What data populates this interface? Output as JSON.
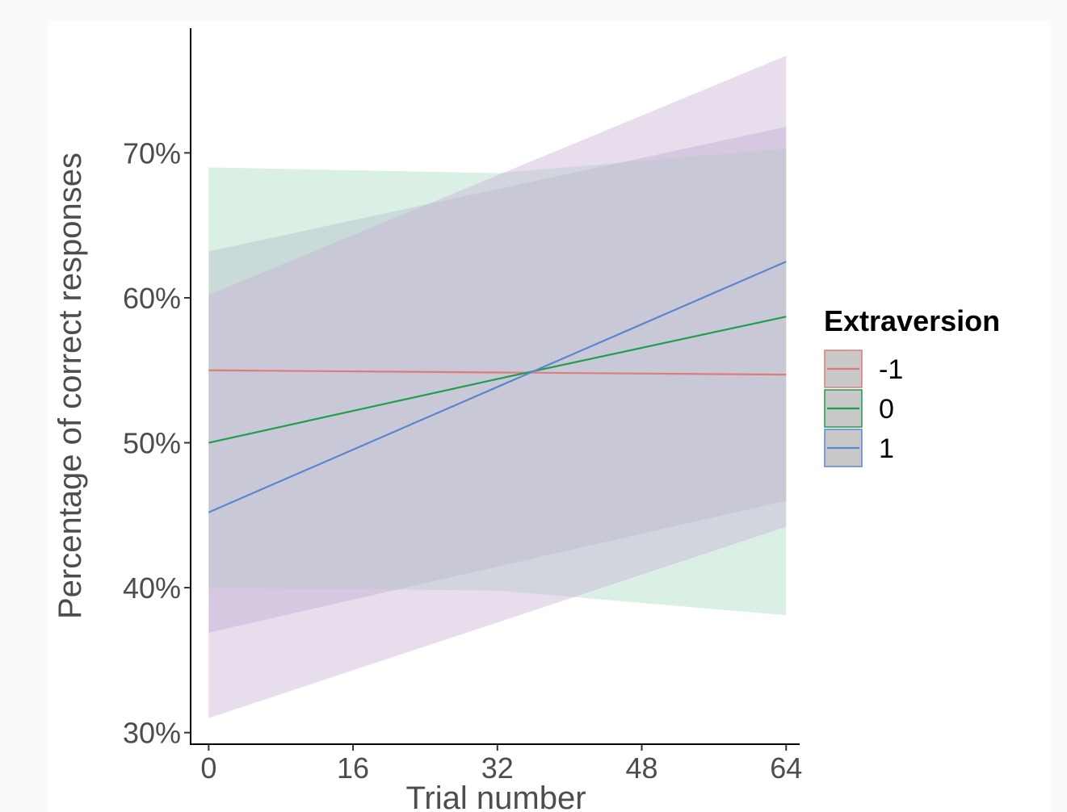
{
  "chart_data": {
    "type": "line",
    "title": "",
    "xlabel": "Trial number",
    "ylabel": "Percentage of correct responses",
    "xlim": [
      -2,
      65.5
    ],
    "ylim": [
      29.2,
      78.6
    ],
    "x_ticks": [
      0,
      16,
      32,
      48,
      64
    ],
    "x_tick_labels": [
      "0",
      "16",
      "32",
      "48",
      "64"
    ],
    "y_ticks": [
      30,
      40,
      50,
      60,
      70
    ],
    "y_tick_labels": [
      "30%",
      "40%",
      "50%",
      "60%",
      "70%"
    ],
    "grid": false,
    "legend": {
      "title": "Extraversion",
      "position": "right"
    },
    "series": [
      {
        "name": "-1",
        "color": "#e07b7b",
        "ribbon_color": "#b5a9c9",
        "x": [
          0,
          64
        ],
        "y": [
          55.0,
          54.7
        ],
        "lower": [
          36.9,
          46.0
        ],
        "upper": [
          63.2,
          71.8
        ]
      },
      {
        "name": "0",
        "color": "#1f9e4f",
        "ribbon_color": "#a8dcc0",
        "x": [
          0,
          32,
          64
        ],
        "y": [
          50.0,
          54.4,
          58.7
        ],
        "lower": [
          40.0,
          39.8,
          38.1
        ],
        "upper": [
          69.0,
          68.6,
          70.3
        ]
      },
      {
        "name": "1",
        "color": "#5b86cf",
        "ribbon_color": "#c7aed3",
        "x": [
          0,
          64
        ],
        "y": [
          45.2,
          62.5
        ],
        "lower": [
          31.0,
          44.2
        ],
        "upper": [
          60.2,
          76.7
        ]
      }
    ]
  }
}
